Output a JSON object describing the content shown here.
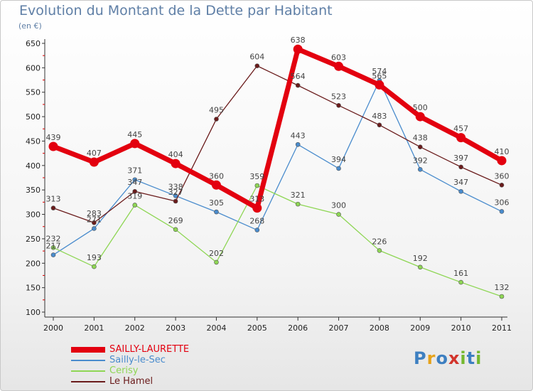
{
  "chart_data": {
    "type": "line",
    "title": "Evolution du Montant de la Dette par Habitant",
    "subtitle": "(en €)",
    "categories": [
      "2000",
      "2001",
      "2002",
      "2003",
      "2004",
      "2005",
      "2006",
      "2007",
      "2008",
      "2009",
      "2010",
      "2011"
    ],
    "ylim": [
      100,
      650
    ],
    "yticks": [
      100,
      150,
      200,
      250,
      300,
      350,
      400,
      450,
      500,
      550,
      600,
      650
    ],
    "grid": false,
    "legend_position": "bottom-left",
    "series": [
      {
        "name": "SAILLY-LAURETTE",
        "color": "#e3000f",
        "values": [
          439,
          407,
          445,
          404,
          360,
          313,
          638,
          603,
          565,
          500,
          457,
          410
        ]
      },
      {
        "name": "Sailly-le-Sec",
        "color": "#4a8ccd",
        "values": [
          217,
          271,
          371,
          338,
          305,
          268,
          443,
          394,
          574,
          392,
          347,
          306
        ]
      },
      {
        "name": "Cerisy",
        "color": "#8ed654",
        "values": [
          232,
          193,
          319,
          269,
          202,
          359,
          321,
          300,
          226,
          192,
          161,
          132
        ]
      },
      {
        "name": "Le Hamel",
        "color": "#6a1b1b",
        "values": [
          313,
          283,
          347,
          327,
          495,
          604,
          564,
          523,
          483,
          438,
          397,
          360
        ]
      }
    ]
  },
  "logo": {
    "text": "Proxiti",
    "colors": [
      "#3d7fc1",
      "#e6a21a",
      "#d2352c",
      "#74b82f"
    ]
  }
}
